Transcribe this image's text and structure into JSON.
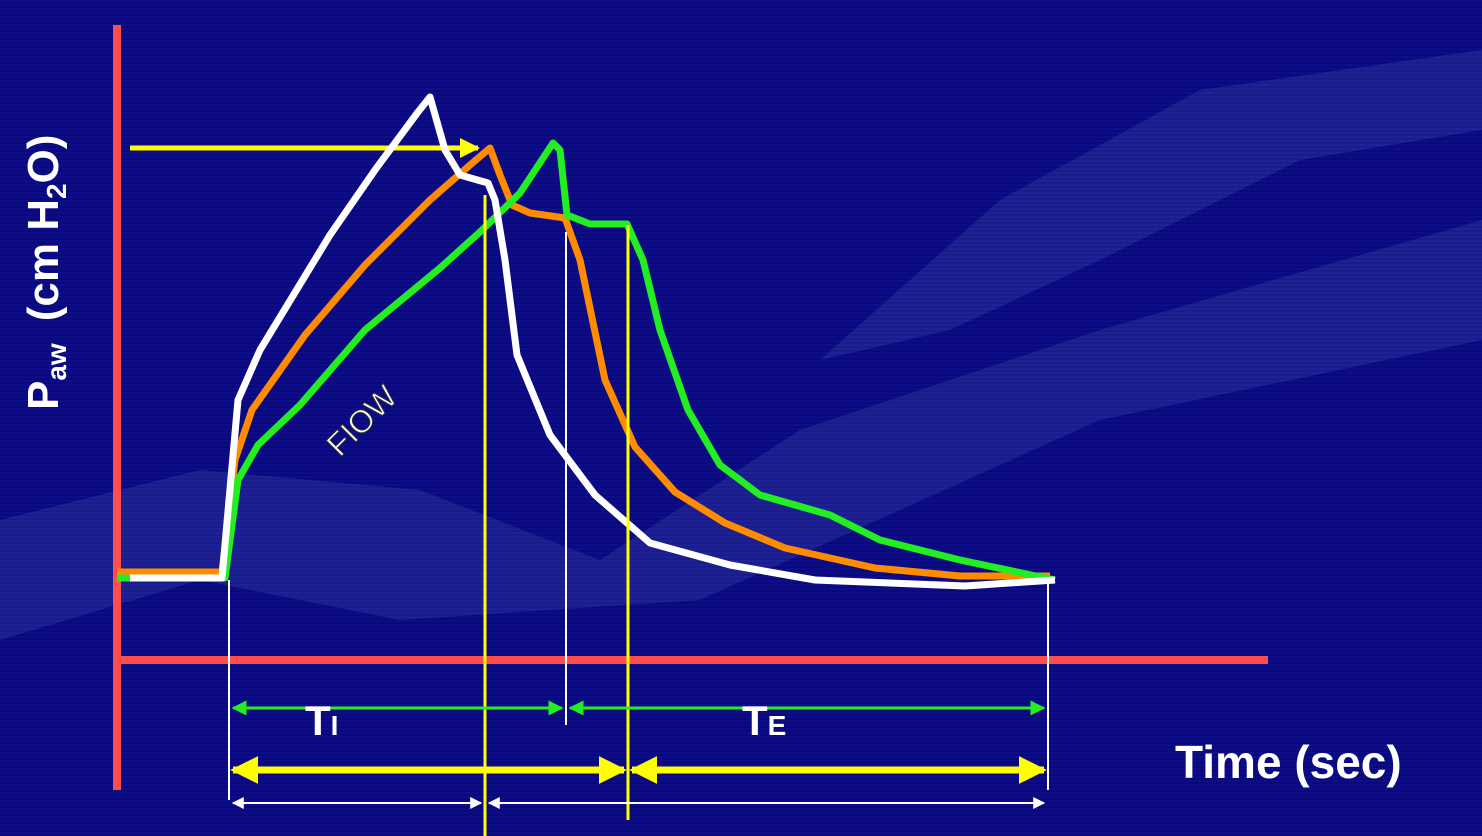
{
  "axis_labels": {
    "y": {
      "symbol": "P",
      "subscript": "aw",
      "unit_start": "(cm H",
      "unit_subscript": "2",
      "unit_end": "O)"
    },
    "x": "Time (sec)"
  },
  "curve_label": "FIOW",
  "intervals": {
    "inspiratory": {
      "symbol": "T",
      "subscript": "I"
    },
    "expiratory": {
      "symbol": "T",
      "subscript": "E"
    }
  }
}
